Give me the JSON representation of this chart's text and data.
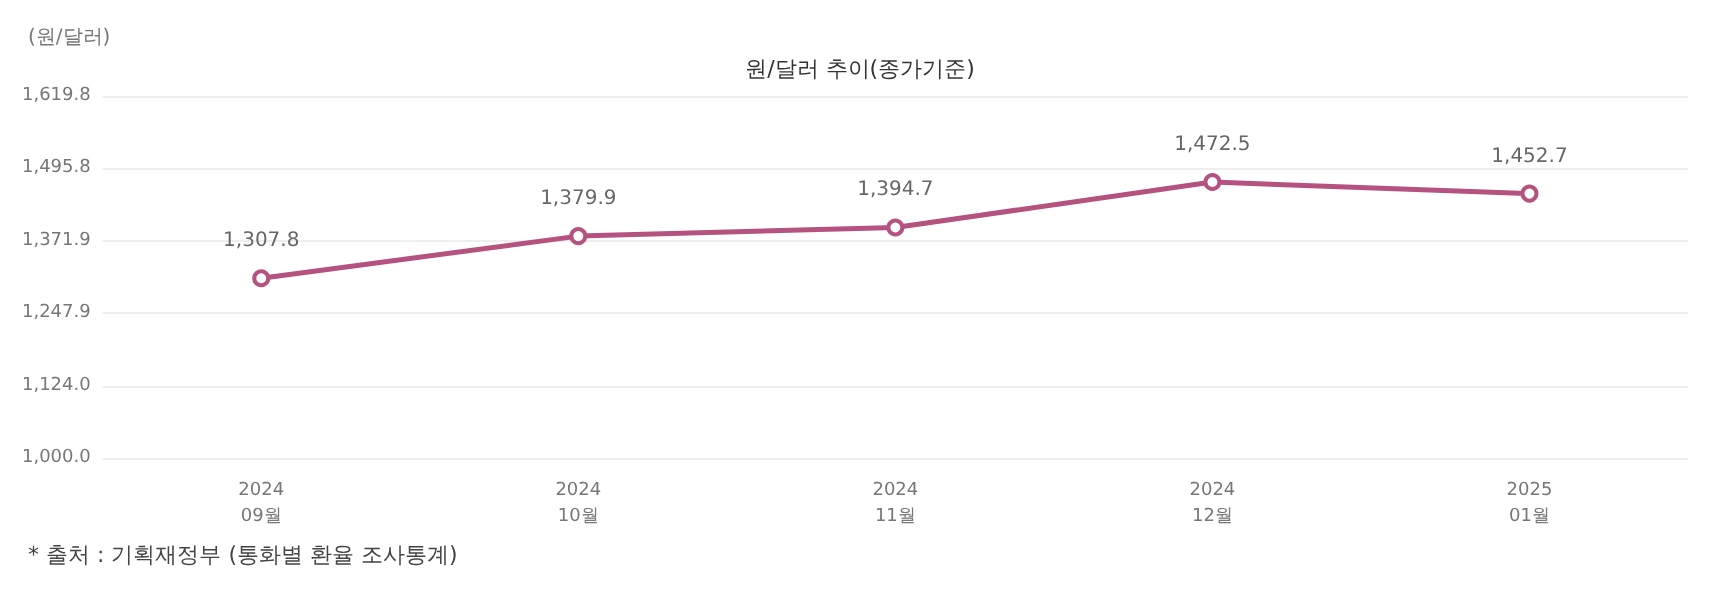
{
  "chart_data": {
    "type": "line",
    "title": "원/달러 추이(종가기준)",
    "ylabel": "(원/달러)",
    "categories": [
      "2024\n09월",
      "2024\n10월",
      "2024\n11월",
      "2024\n12월",
      "2025\n01월"
    ],
    "series": [
      {
        "color": "#b5527f",
        "values": [
          1307.8,
          1379.9,
          1394.7,
          1472.5,
          1452.7
        ],
        "value_labels": [
          "1,307.8",
          "1,379.9",
          "1,394.7",
          "1,472.5",
          "1,452.7"
        ]
      }
    ],
    "ylim": [
      1000.0,
      1619.8
    ],
    "yticks": [
      {
        "value": 1000.0,
        "label": "1,000.0"
      },
      {
        "value": 1124.0,
        "label": "1,124.0"
      },
      {
        "value": 1247.9,
        "label": "1,247.9"
      },
      {
        "value": 1371.9,
        "label": "1,371.9"
      },
      {
        "value": 1495.8,
        "label": "1,495.8"
      },
      {
        "value": 1619.8,
        "label": "1,619.8"
      }
    ],
    "grid": "y",
    "marker": "circle",
    "line_style": "solid",
    "annotations": [
      "* 출처 : 기획재정부 (통화별 환율 조사통계)"
    ]
  }
}
